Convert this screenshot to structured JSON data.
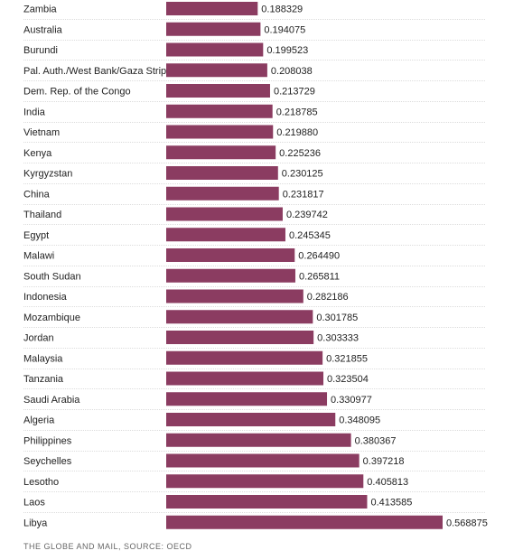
{
  "chart_data": {
    "type": "bar",
    "orientation": "horizontal",
    "categories": [
      "Zambia",
      "Australia",
      "Burundi",
      "Pal. Auth./West Bank/Gaza Strip",
      "Dem. Rep. of the Congo",
      "India",
      "Vietnam",
      "Kenya",
      "Kyrgyzstan",
      "China",
      "Thailand",
      "Egypt",
      "Malawi",
      "South Sudan",
      "Indonesia",
      "Mozambique",
      "Jordan",
      "Malaysia",
      "Tanzania",
      "Saudi Arabia",
      "Algeria",
      "Philippines",
      "Seychelles",
      "Lesotho",
      "Laos",
      "Libya"
    ],
    "values": [
      0.188329,
      0.194075,
      0.199523,
      0.208038,
      0.213729,
      0.218785,
      0.21988,
      0.225236,
      0.230125,
      0.231817,
      0.239742,
      0.245345,
      0.26449,
      0.265811,
      0.282186,
      0.301785,
      0.303333,
      0.321855,
      0.323504,
      0.330977,
      0.348095,
      0.380367,
      0.397218,
      0.405813,
      0.413585,
      0.568875
    ],
    "value_labels": [
      "0.188329",
      "0.194075",
      "0.199523",
      "0.208038",
      "0.213729",
      "0.218785",
      "0.219880",
      "0.225236",
      "0.230125",
      "0.231817",
      "0.239742",
      "0.245345",
      "0.264490",
      "0.265811",
      "0.282186",
      "0.301785",
      "0.303333",
      "0.321855",
      "0.323504",
      "0.330977",
      "0.348095",
      "0.380367",
      "0.397218",
      "0.405813",
      "0.413585",
      "0.568875"
    ],
    "xlim": [
      0,
      0.568875
    ],
    "bar_color": "#8b3c61",
    "grid": false
  },
  "source": "THE GLOBE AND MAIL, SOURCE: OECD"
}
